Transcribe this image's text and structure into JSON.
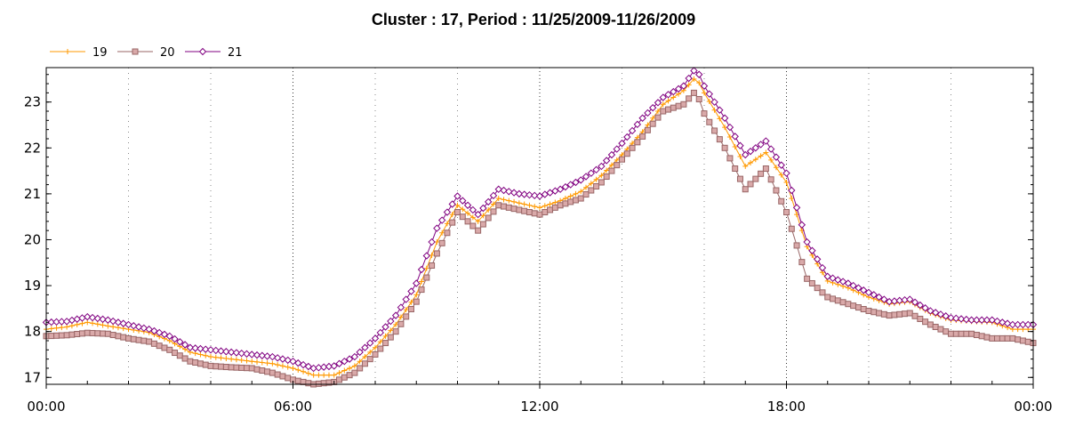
{
  "chart_data": {
    "type": "line",
    "title": "Cluster : 17, Period : 11/25/2009-11/26/2009",
    "xlabel": "",
    "ylabel": "",
    "x_unit": "hours",
    "x_ticks": [
      0,
      6,
      12,
      18,
      24
    ],
    "x_tick_labels": [
      "00:00",
      "06:00",
      "12:00",
      "18:00",
      "00:00"
    ],
    "xlim": [
      0,
      24
    ],
    "y_ticks": [
      17,
      18,
      19,
      20,
      21,
      22,
      23
    ],
    "y_tick_labels": [
      "17",
      "18",
      "19",
      "20",
      "21",
      "22",
      "23"
    ],
    "ylim": [
      16.85,
      23.75
    ],
    "grid": "vertical dotted lines; dense at 2 hours, darker at 6 hours",
    "legend_position": "top-left",
    "x": [
      0,
      0.5,
      1,
      1.5,
      2,
      2.5,
      3,
      3.5,
      4,
      4.5,
      5,
      5.5,
      6,
      6.5,
      7,
      7.5,
      8,
      8.5,
      9,
      9.5,
      10,
      10.5,
      11,
      11.5,
      12,
      12.5,
      13,
      13.5,
      14,
      14.5,
      15,
      15.5,
      15.8,
      16,
      16.5,
      17,
      17.5,
      18,
      18.5,
      19,
      19.5,
      20,
      20.5,
      21,
      21.5,
      22,
      22.5,
      23,
      23.5,
      24
    ],
    "series": [
      {
        "name": "19",
        "color": "#FF9900",
        "marker": "plus",
        "values": [
          18.05,
          18.1,
          18.2,
          18.12,
          18.05,
          17.98,
          17.8,
          17.55,
          17.45,
          17.4,
          17.35,
          17.3,
          17.2,
          17.05,
          17.05,
          17.25,
          17.65,
          18.15,
          18.8,
          19.95,
          20.75,
          20.4,
          20.9,
          20.8,
          20.7,
          20.85,
          21.05,
          21.4,
          21.85,
          22.35,
          22.95,
          23.25,
          23.55,
          23.2,
          22.45,
          21.6,
          21.9,
          21.25,
          19.85,
          19.1,
          18.95,
          18.75,
          18.6,
          18.65,
          18.4,
          18.25,
          18.22,
          18.2,
          18.05,
          18.05
        ]
      },
      {
        "name": "20",
        "color": "#996666",
        "marker": "square",
        "values": [
          17.9,
          17.92,
          17.97,
          17.95,
          17.85,
          17.78,
          17.6,
          17.35,
          17.25,
          17.22,
          17.2,
          17.1,
          16.95,
          16.85,
          16.9,
          17.1,
          17.5,
          18.0,
          18.65,
          19.7,
          20.6,
          20.2,
          20.75,
          20.65,
          20.55,
          20.75,
          20.9,
          21.25,
          21.75,
          22.25,
          22.8,
          22.95,
          23.25,
          22.75,
          22.0,
          21.1,
          21.55,
          20.6,
          19.15,
          18.75,
          18.6,
          18.45,
          18.35,
          18.4,
          18.15,
          17.95,
          17.95,
          17.85,
          17.85,
          17.75
        ]
      },
      {
        "name": "21",
        "color": "#800080",
        "marker": "diamond",
        "values": [
          18.2,
          18.22,
          18.32,
          18.25,
          18.15,
          18.05,
          17.9,
          17.65,
          17.6,
          17.55,
          17.5,
          17.45,
          17.35,
          17.2,
          17.25,
          17.45,
          17.85,
          18.35,
          19.05,
          20.25,
          20.95,
          20.55,
          21.1,
          21.0,
          20.95,
          21.1,
          21.3,
          21.6,
          22.1,
          22.65,
          23.1,
          23.35,
          23.75,
          23.35,
          22.65,
          21.85,
          22.15,
          21.45,
          19.95,
          19.2,
          19.05,
          18.85,
          18.65,
          18.7,
          18.45,
          18.3,
          18.25,
          18.25,
          18.15,
          18.15
        ]
      }
    ]
  }
}
